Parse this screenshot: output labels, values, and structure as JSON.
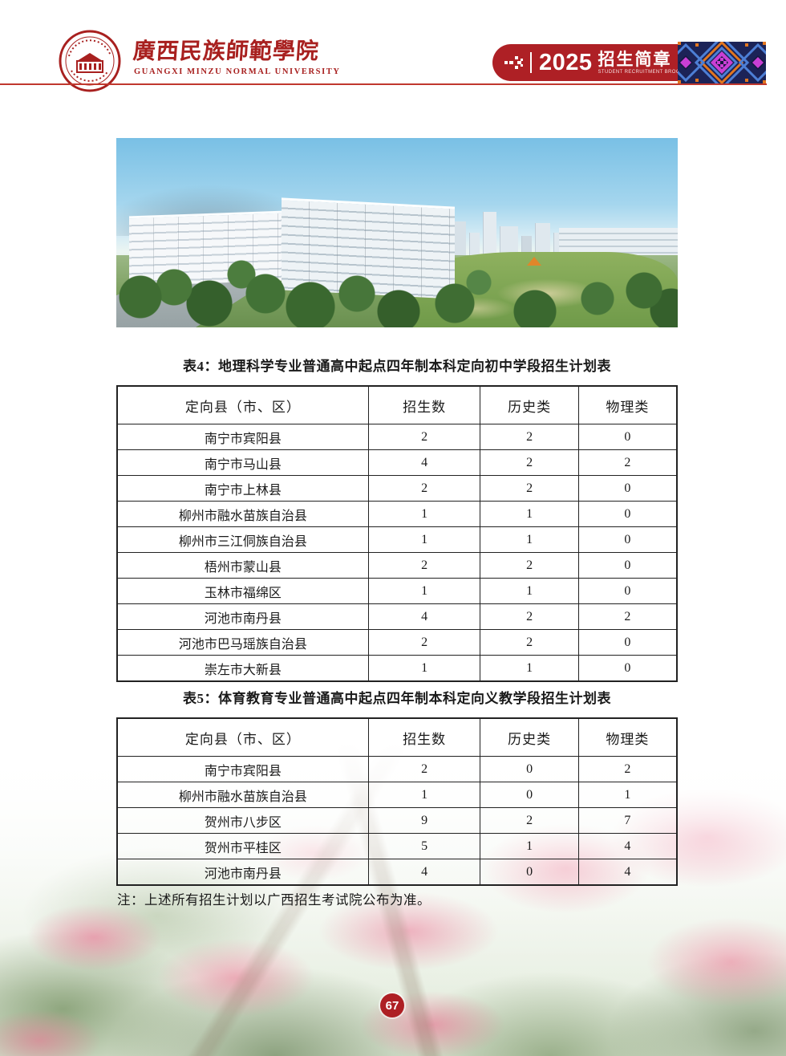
{
  "header": {
    "university_name_cn": "廣西民族師範學院",
    "university_name_en": "GUANGXI MINZU NORMAL UNIVERSITY",
    "banner": {
      "year": "2025",
      "title_cn": "招生简章",
      "subtitle_en": "STUDENT RECRUITMENT BROCHURE"
    }
  },
  "icons": {
    "logo": "university-seal",
    "banner_arrow": "pixel-arrow-right",
    "banner_pattern": "zhuang-brocade-pattern"
  },
  "colors": {
    "brand_red": "#ae2025",
    "line_red": "#c0382e",
    "table_border": "#222222",
    "badge_red": "#ae1f24"
  },
  "tables": [
    {
      "title": "表4：地理科学专业普通高中起点四年制本科定向初中学段招生计划表",
      "columns": [
        "定向县（市、区）",
        "招生数",
        "历史类",
        "物理类"
      ],
      "rows": [
        [
          "南宁市宾阳县",
          "2",
          "2",
          "0"
        ],
        [
          "南宁市马山县",
          "4",
          "2",
          "2"
        ],
        [
          "南宁市上林县",
          "2",
          "2",
          "0"
        ],
        [
          "柳州市融水苗族自治县",
          "1",
          "1",
          "0"
        ],
        [
          "柳州市三江侗族自治县",
          "1",
          "1",
          "0"
        ],
        [
          "梧州市蒙山县",
          "2",
          "2",
          "0"
        ],
        [
          "玉林市福绵区",
          "1",
          "1",
          "0"
        ],
        [
          "河池市南丹县",
          "4",
          "2",
          "2"
        ],
        [
          "河池市巴马瑶族自治县",
          "2",
          "2",
          "0"
        ],
        [
          "崇左市大新县",
          "1",
          "1",
          "0"
        ]
      ]
    },
    {
      "title": "表5：体育教育专业普通高中起点四年制本科定向义教学段招生计划表",
      "columns": [
        "定向县（市、区）",
        "招生数",
        "历史类",
        "物理类"
      ],
      "rows": [
        [
          "南宁市宾阳县",
          "2",
          "0",
          "2"
        ],
        [
          "柳州市融水苗族自治县",
          "1",
          "0",
          "1"
        ],
        [
          "贺州市八步区",
          "9",
          "2",
          "7"
        ],
        [
          "贺州市平桂区",
          "5",
          "1",
          "4"
        ],
        [
          "河池市南丹县",
          "4",
          "0",
          "4"
        ]
      ]
    }
  ],
  "note": "注：上述所有招生计划以广西招生考试院公布为准。",
  "page_number": "67"
}
